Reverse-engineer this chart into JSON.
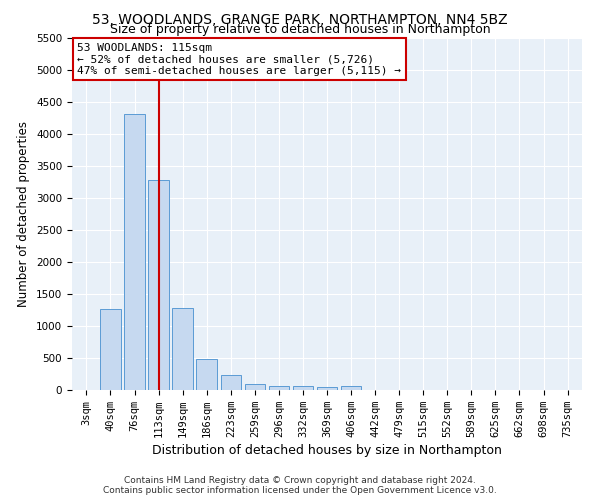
{
  "title1": "53, WOODLANDS, GRANGE PARK, NORTHAMPTON, NN4 5BZ",
  "title2": "Size of property relative to detached houses in Northampton",
  "xlabel": "Distribution of detached houses by size in Northampton",
  "ylabel": "Number of detached properties",
  "categories": [
    "3sqm",
    "40sqm",
    "76sqm",
    "113sqm",
    "149sqm",
    "186sqm",
    "223sqm",
    "259sqm",
    "296sqm",
    "332sqm",
    "369sqm",
    "406sqm",
    "442sqm",
    "479sqm",
    "515sqm",
    "552sqm",
    "589sqm",
    "625sqm",
    "662sqm",
    "698sqm",
    "735sqm"
  ],
  "values": [
    0,
    1270,
    4300,
    3280,
    1280,
    480,
    230,
    100,
    70,
    60,
    50,
    70,
    0,
    0,
    0,
    0,
    0,
    0,
    0,
    0,
    0
  ],
  "bar_color": "#c6d9f0",
  "bar_edge_color": "#5b9bd5",
  "highlight_index": 3,
  "highlight_line_color": "#cc0000",
  "annotation_line1": "53 WOODLANDS: 115sqm",
  "annotation_line2": "← 52% of detached houses are smaller (5,726)",
  "annotation_line3": "47% of semi-detached houses are larger (5,115) →",
  "annotation_box_color": "#ffffff",
  "annotation_box_edge_color": "#cc0000",
  "ylim": [
    0,
    5500
  ],
  "yticks": [
    0,
    500,
    1000,
    1500,
    2000,
    2500,
    3000,
    3500,
    4000,
    4500,
    5000,
    5500
  ],
  "background_color": "#e8f0f8",
  "footer_line1": "Contains HM Land Registry data © Crown copyright and database right 2024.",
  "footer_line2": "Contains public sector information licensed under the Open Government Licence v3.0.",
  "title1_fontsize": 10,
  "title2_fontsize": 9,
  "xlabel_fontsize": 9,
  "ylabel_fontsize": 8.5,
  "tick_fontsize": 7.5,
  "annotation_fontsize": 8,
  "footer_fontsize": 6.5
}
